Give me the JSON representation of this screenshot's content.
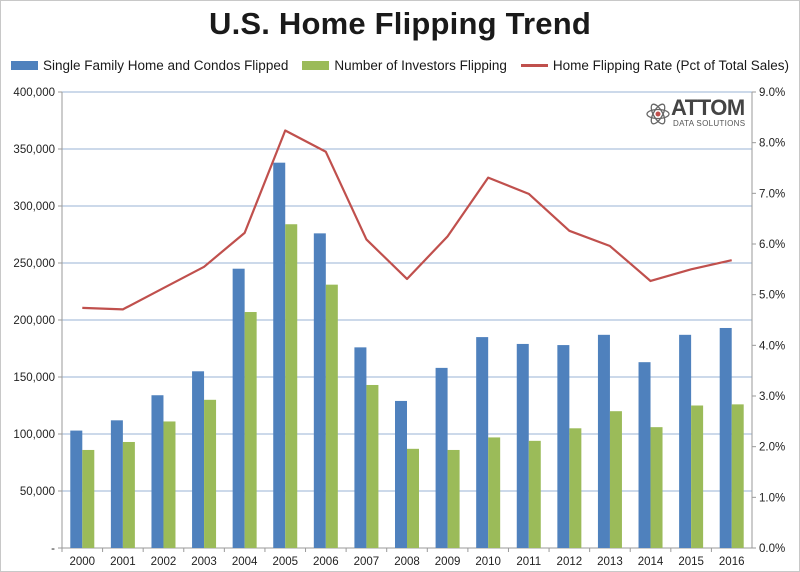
{
  "chart_data": {
    "type": "bar",
    "title": "U.S. Home Flipping Trend",
    "categories": [
      "2000",
      "2001",
      "2002",
      "2003",
      "2004",
      "2005",
      "2006",
      "2007",
      "2008",
      "2009",
      "2010",
      "2011",
      "2012",
      "2013",
      "2014",
      "2015",
      "2016"
    ],
    "series": [
      {
        "name": "Single Family Home and Condos Flipped",
        "type": "bar",
        "axis": "left",
        "color": "#4f81bd",
        "values": [
          103000,
          112000,
          134000,
          155000,
          245000,
          338000,
          276000,
          176000,
          129000,
          158000,
          185000,
          179000,
          178000,
          187000,
          163000,
          187000,
          193000
        ]
      },
      {
        "name": "Number of Investors Flipping",
        "type": "bar",
        "axis": "left",
        "color": "#9bbb59",
        "values": [
          86000,
          93000,
          111000,
          130000,
          207000,
          284000,
          231000,
          143000,
          87000,
          86000,
          97000,
          94000,
          105000,
          120000,
          106000,
          125000,
          126000
        ]
      },
      {
        "name": "Home Flipping Rate (Pct of Total Sales)",
        "type": "line",
        "axis": "right",
        "color": "#c0504d",
        "values": [
          4.74,
          4.71,
          5.13,
          5.55,
          6.22,
          8.24,
          7.82,
          6.09,
          5.31,
          6.15,
          7.31,
          6.99,
          6.26,
          5.96,
          5.27,
          5.5,
          5.68
        ]
      }
    ],
    "yleft": {
      "ticks": [
        "-",
        "50,000",
        "100,000",
        "150,000",
        "200,000",
        "250,000",
        "300,000",
        "350,000",
        "400,000"
      ],
      "ylim": [
        0,
        400000
      ]
    },
    "yright": {
      "ticks": [
        "0.0%",
        "1.0%",
        "2.0%",
        "3.0%",
        "4.0%",
        "5.0%",
        "6.0%",
        "7.0%",
        "8.0%",
        "9.0%"
      ],
      "ylim": [
        0,
        9
      ]
    },
    "grid": true,
    "legend_position": "top"
  },
  "logo": {
    "name": "ATTOM",
    "tagline": "DATA SOLUTIONS",
    "icon": "atom-icon"
  }
}
